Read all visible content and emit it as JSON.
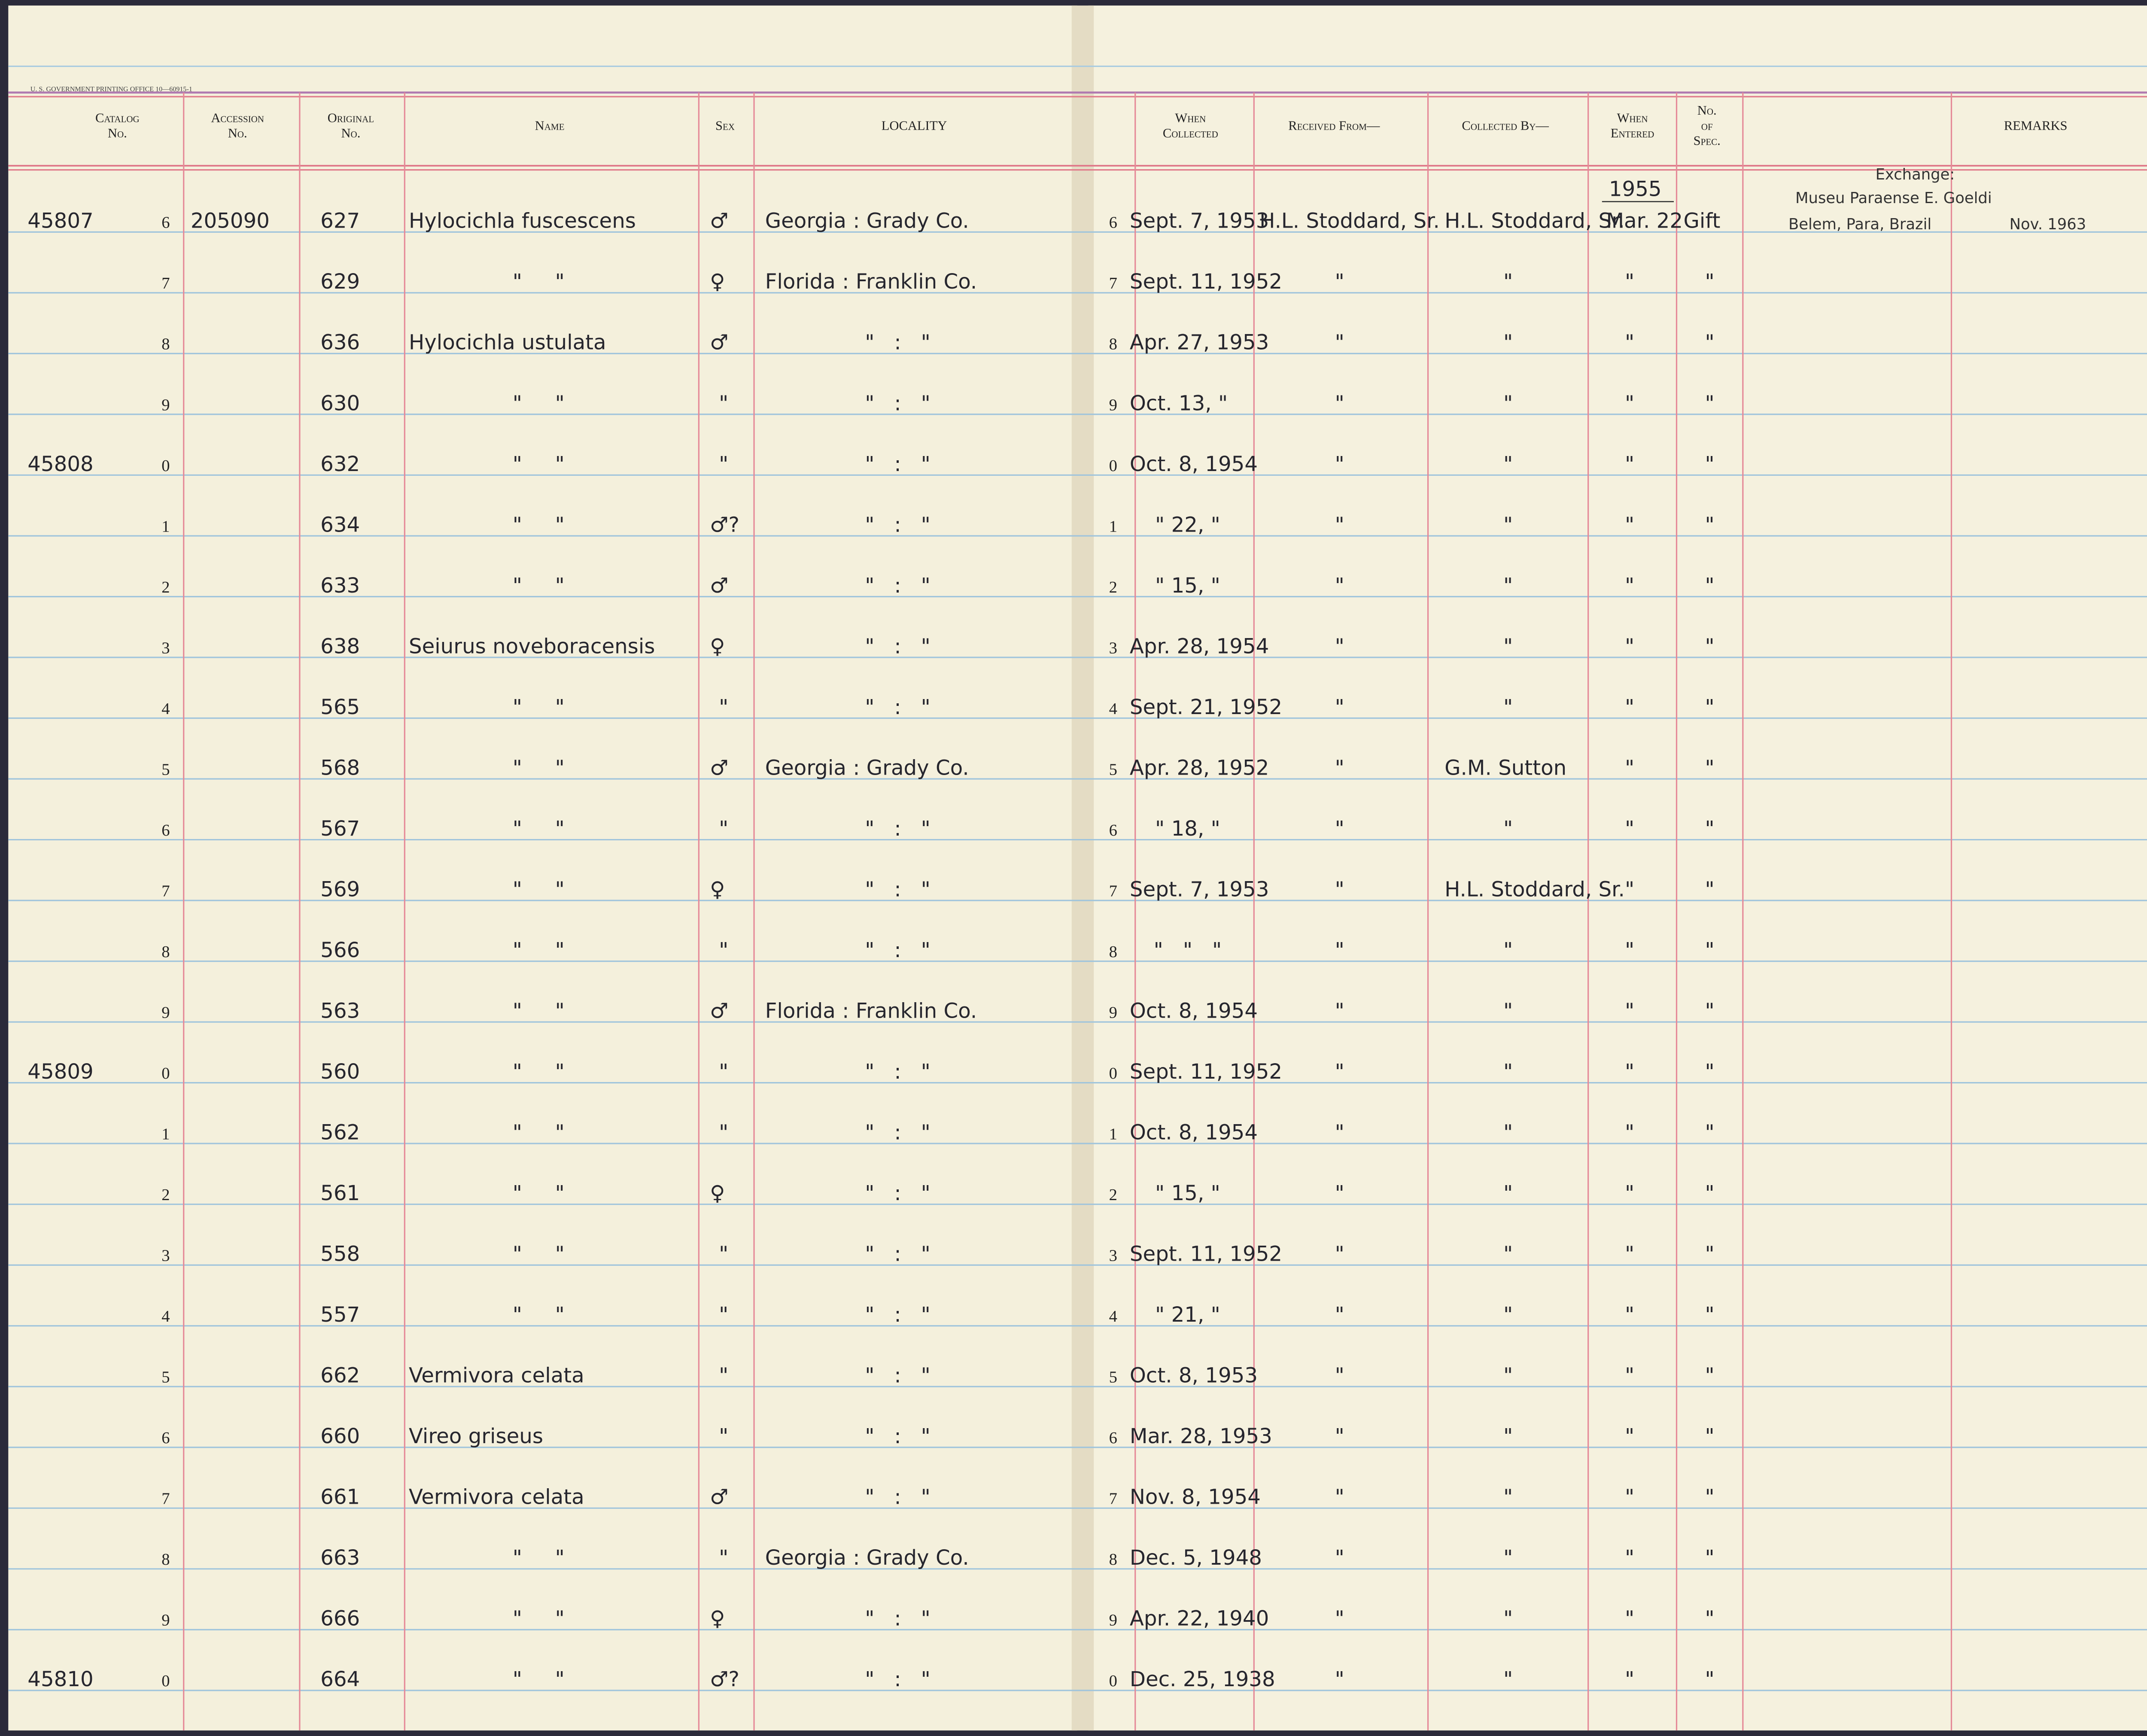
{
  "printer_line": "U. S. GOVERNMENT PRINTING OFFICE 10—60915-1",
  "header": {
    "columns": [
      [
        "Catalog",
        "No."
      ],
      [
        "Accession",
        "No."
      ],
      [
        "Original",
        "No."
      ],
      [
        "Name"
      ],
      [
        "Sex"
      ],
      [
        "LOCALITY"
      ],
      [
        "When",
        "Collected"
      ],
      [
        "Received From—"
      ],
      [
        "Collected By—"
      ],
      [
        "When",
        "Entered"
      ],
      [
        "No.",
        "of",
        "Spec."
      ],
      [
        "REMARKS"
      ]
    ]
  },
  "entered_year": "1955",
  "remarks": {
    "heading": "Exchange:",
    "museum": "Museu Paraense E. Goeldi",
    "place": "Belem, Para, Brazil",
    "date": "Nov. 1963"
  },
  "rows": [
    {
      "catalog": "45807",
      "digit": "6",
      "accession": "205090",
      "original": "627",
      "name": "Hylocichla fuscescens",
      "sex": "♂",
      "locality": "Georgia : Grady Co.",
      "digit_right": "6",
      "collected": "Sept. 7, 1953",
      "received_from": "H.L. Stoddard, Sr.",
      "collected_by": "H.L. Stoddard, Sr.",
      "entered": "Mar. 22",
      "spec": "Gift"
    },
    {
      "digit": "7",
      "original": "629",
      "name": "\"     \"",
      "sex": "♀",
      "locality": "Florida : Franklin Co.",
      "digit_right": "7",
      "collected": "Sept. 11, 1952",
      "received_from": "\"",
      "collected_by": "\"",
      "entered": "\"",
      "spec": "\""
    },
    {
      "digit": "8",
      "original": "636",
      "name": "Hylocichla ustulata",
      "sex": "♂",
      "locality": "\"   :   \"",
      "digit_right": "8",
      "collected": "Apr. 27, 1953",
      "received_from": "\"",
      "collected_by": "\"",
      "entered": "\"",
      "spec": "\""
    },
    {
      "digit": "9",
      "original": "630",
      "name": "\"     \"",
      "sex": "\"",
      "locality": "\"   :   \"",
      "digit_right": "9",
      "collected": "Oct. 13, \"",
      "received_from": "\"",
      "collected_by": "\"",
      "entered": "\"",
      "spec": "\""
    },
    {
      "catalog": "45808",
      "digit": "0",
      "original": "632",
      "name": "\"     \"",
      "sex": "\"",
      "locality": "\"   :   \"",
      "digit_right": "0",
      "collected": "Oct. 8, 1954",
      "received_from": "\"",
      "collected_by": "\"",
      "entered": "\"",
      "spec": "\""
    },
    {
      "digit": "1",
      "original": "634",
      "name": "\"     \"",
      "sex": "♂?",
      "locality": "\"   :   \"",
      "digit_right": "1",
      "collected": "\" 22, \"",
      "received_from": "\"",
      "collected_by": "\"",
      "entered": "\"",
      "spec": "\""
    },
    {
      "digit": "2",
      "original": "633",
      "name": "\"     \"",
      "sex": "♂",
      "locality": "\"   :   \"",
      "digit_right": "2",
      "collected": "\" 15, \"",
      "received_from": "\"",
      "collected_by": "\"",
      "entered": "\"",
      "spec": "\""
    },
    {
      "digit": "3",
      "original": "638",
      "name": "Seiurus noveboracensis",
      "sex": "♀",
      "locality": "\"   :   \"",
      "digit_right": "3",
      "collected": "Apr. 28, 1954",
      "received_from": "\"",
      "collected_by": "\"",
      "entered": "\"",
      "spec": "\""
    },
    {
      "digit": "4",
      "original": "565",
      "name": "\"     \"",
      "sex": "\"",
      "locality": "\"   :   \"",
      "digit_right": "4",
      "collected": "Sept. 21, 1952",
      "received_from": "\"",
      "collected_by": "\"",
      "entered": "\"",
      "spec": "\""
    },
    {
      "digit": "5",
      "original": "568",
      "name": "\"     \"",
      "sex": "♂",
      "locality": "Georgia : Grady Co.",
      "digit_right": "5",
      "collected": "Apr. 28, 1952",
      "received_from": "\"",
      "collected_by": "G.M. Sutton",
      "entered": "\"",
      "spec": "\""
    },
    {
      "digit": "6",
      "original": "567",
      "name": "\"     \"",
      "sex": "\"",
      "locality": "\"   :   \"",
      "digit_right": "6",
      "collected": "\" 18, \"",
      "received_from": "\"",
      "collected_by": "\"",
      "entered": "\"",
      "spec": "\""
    },
    {
      "digit": "7",
      "original": "569",
      "name": "\"     \"",
      "sex": "♀",
      "locality": "\"   :   \"",
      "digit_right": "7",
      "collected": "Sept. 7, 1953",
      "received_from": "\"",
      "collected_by": "H.L. Stoddard, Sr.",
      "entered": "\"",
      "spec": "\""
    },
    {
      "digit": "8",
      "original": "566",
      "name": "\"     \"",
      "sex": "\"",
      "locality": "\"   :   \"",
      "digit_right": "8",
      "collected": "\"   \"   \"",
      "received_from": "\"",
      "collected_by": "\"",
      "entered": "\"",
      "spec": "\""
    },
    {
      "digit": "9",
      "original": "563",
      "name": "\"     \"",
      "sex": "♂",
      "locality": "Florida : Franklin Co.",
      "digit_right": "9",
      "collected": "Oct. 8, 1954",
      "received_from": "\"",
      "collected_by": "\"",
      "entered": "\"",
      "spec": "\""
    },
    {
      "catalog": "45809",
      "digit": "0",
      "original": "560",
      "name": "\"     \"",
      "sex": "\"",
      "locality": "\"   :   \"",
      "digit_right": "0",
      "collected": "Sept. 11, 1952",
      "received_from": "\"",
      "collected_by": "\"",
      "entered": "\"",
      "spec": "\""
    },
    {
      "digit": "1",
      "original": "562",
      "name": "\"     \"",
      "sex": "\"",
      "locality": "\"   :   \"",
      "digit_right": "1",
      "collected": "Oct. 8, 1954",
      "received_from": "\"",
      "collected_by": "\"",
      "entered": "\"",
      "spec": "\""
    },
    {
      "digit": "2",
      "original": "561",
      "name": "\"     \"",
      "sex": "♀",
      "locality": "\"   :   \"",
      "digit_right": "2",
      "collected": "\" 15, \"",
      "received_from": "\"",
      "collected_by": "\"",
      "entered": "\"",
      "spec": "\""
    },
    {
      "digit": "3",
      "original": "558",
      "name": "\"     \"",
      "sex": "\"",
      "locality": "\"   :   \"",
      "digit_right": "3",
      "collected": "Sept. 11, 1952",
      "received_from": "\"",
      "collected_by": "\"",
      "entered": "\"",
      "spec": "\""
    },
    {
      "digit": "4",
      "original": "557",
      "name": "\"     \"",
      "sex": "\"",
      "locality": "\"   :   \"",
      "digit_right": "4",
      "collected": "\" 21, \"",
      "received_from": "\"",
      "collected_by": "\"",
      "entered": "\"",
      "spec": "\""
    },
    {
      "digit": "5",
      "original": "662",
      "name": "Vermivora celata",
      "sex": "\"",
      "locality": "\"   :   \"",
      "digit_right": "5",
      "collected": "Oct. 8, 1953",
      "received_from": "\"",
      "collected_by": "\"",
      "entered": "\"",
      "spec": "\""
    },
    {
      "digit": "6",
      "original": "660",
      "name": "Vireo griseus",
      "sex": "\"",
      "locality": "\"   :   \"",
      "digit_right": "6",
      "collected": "Mar. 28, 1953",
      "received_from": "\"",
      "collected_by": "\"",
      "entered": "\"",
      "spec": "\""
    },
    {
      "digit": "7",
      "original": "661",
      "name": "Vermivora celata",
      "sex": "♂",
      "locality": "\"   :   \"",
      "digit_right": "7",
      "collected": "Nov. 8, 1954",
      "received_from": "\"",
      "collected_by": "\"",
      "entered": "\"",
      "spec": "\""
    },
    {
      "digit": "8",
      "original": "663",
      "name": "\"     \"",
      "sex": "\"",
      "locality": "Georgia : Grady Co.",
      "digit_right": "8",
      "collected": "Dec. 5, 1948",
      "received_from": "\"",
      "collected_by": "\"",
      "entered": "\"",
      "spec": "\""
    },
    {
      "digit": "9",
      "original": "666",
      "name": "\"     \"",
      "sex": "♀",
      "locality": "\"   :   \"",
      "digit_right": "9",
      "collected": "Apr. 22, 1940",
      "received_from": "\"",
      "collected_by": "\"",
      "entered": "\"",
      "spec": "\""
    },
    {
      "catalog": "45810",
      "digit": "0",
      "original": "664",
      "name": "\"     \"",
      "sex": "♂?",
      "locality": "\"   :   \"",
      "digit_right": "0",
      "collected": "Dec. 25, 1938",
      "received_from": "\"",
      "collected_by": "\"",
      "entered": "\"",
      "spec": "\""
    }
  ]
}
